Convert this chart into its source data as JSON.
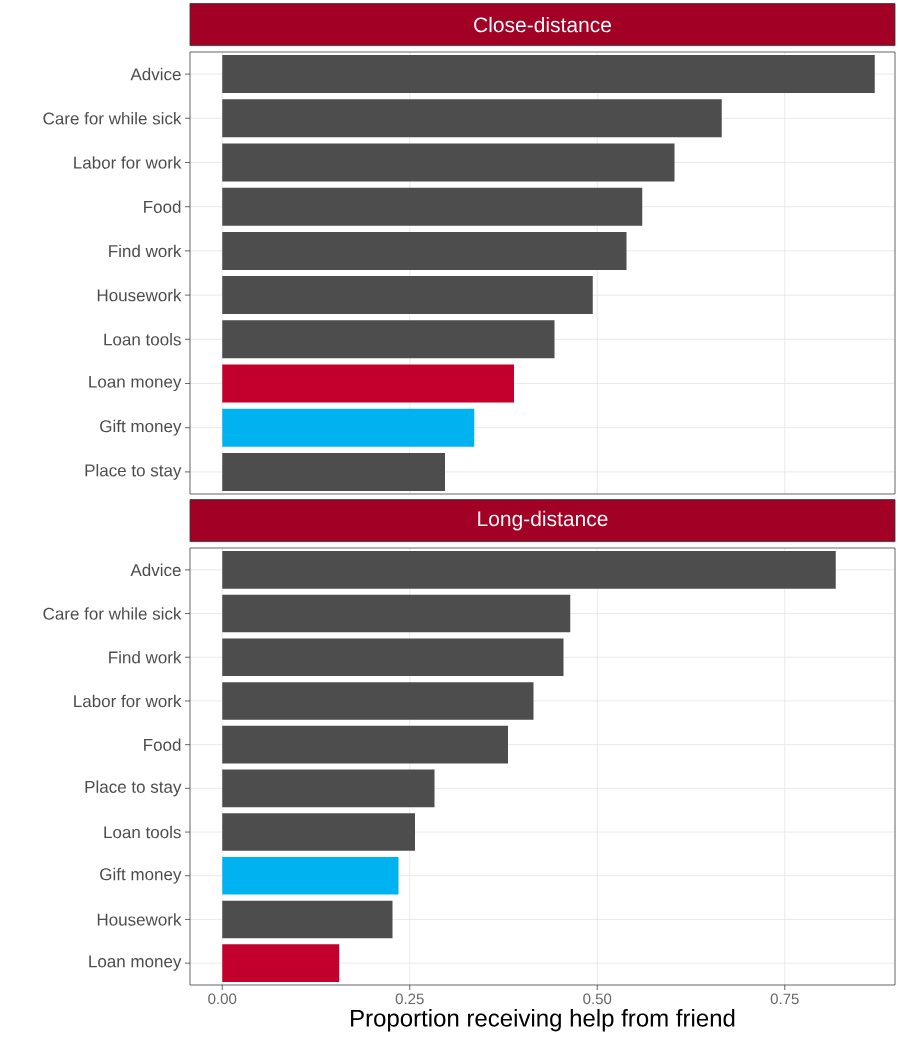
{
  "chart_data": [
    {
      "type": "bar",
      "orientation": "horizontal",
      "title": "Close-distance",
      "categories": [
        "Advice",
        "Care for while sick",
        "Labor for work",
        "Food",
        "Find work",
        "Housework",
        "Loan tools",
        "Loan money",
        "Gift money",
        "Place to stay"
      ],
      "values": [
        0.87,
        0.666,
        0.603,
        0.56,
        0.539,
        0.494,
        0.443,
        0.389,
        0.336,
        0.297
      ],
      "colors": [
        "#4d4d4d",
        "#4d4d4d",
        "#4d4d4d",
        "#4d4d4d",
        "#4d4d4d",
        "#4d4d4d",
        "#4d4d4d",
        "#c3002d",
        "#00b2f0",
        "#4d4d4d"
      ],
      "xlim": [
        -0.043,
        0.897
      ],
      "xticks": [
        {
          "value": 0,
          "label": null
        },
        {
          "value": 0.25,
          "label": null
        },
        {
          "value": 0.5,
          "label": null
        },
        {
          "value": 0.75,
          "label": null
        }
      ],
      "tick_labels": "y",
      "grid": true
    },
    {
      "type": "bar",
      "orientation": "horizontal",
      "title": "Long-distance",
      "xlabel": "Proportion receiving help from friend",
      "categories": [
        "Advice",
        "Care for while sick",
        "Find work",
        "Labor for work",
        "Food",
        "Place to stay",
        "Loan tools",
        "Gift money",
        "Housework",
        "Loan money"
      ],
      "values": [
        0.818,
        0.464,
        0.455,
        0.415,
        0.381,
        0.283,
        0.257,
        0.235,
        0.227,
        0.156
      ],
      "colors": [
        "#4d4d4d",
        "#4d4d4d",
        "#4d4d4d",
        "#4d4d4d",
        "#4d4d4d",
        "#4d4d4d",
        "#4d4d4d",
        "#00b2f0",
        "#4d4d4d",
        "#c3002d"
      ],
      "xlim": [
        -0.043,
        0.897
      ],
      "xticks": [
        {
          "value": 0,
          "label": "0.00"
        },
        {
          "value": 0.25,
          "label": "0.25"
        },
        {
          "value": 0.5,
          "label": "0.50"
        },
        {
          "value": 0.75,
          "label": "0.75"
        }
      ],
      "grid": true
    }
  ]
}
